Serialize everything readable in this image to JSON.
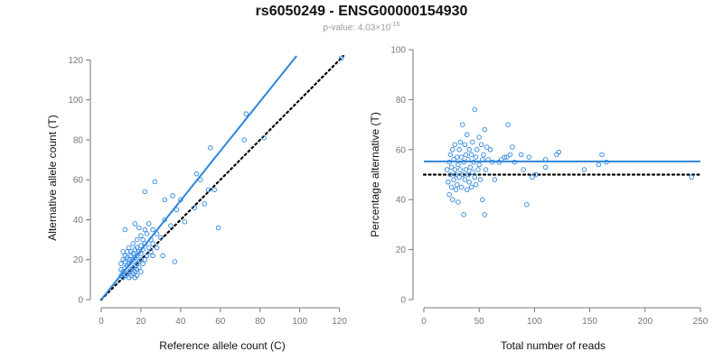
{
  "title": "rs6050249 - ENSG00000154930",
  "subtitle": {
    "prefix": "p-value: 4.03×10",
    "exponent": "-16"
  },
  "colors": {
    "points": "#2e86de",
    "fit": "#2e86de",
    "reference": "#000000",
    "axis": "#777777"
  },
  "chart_data": [
    {
      "type": "scatter",
      "xlabel": "Reference allele count (C)",
      "ylabel": "Alternative allele count (T)",
      "xlim": [
        0,
        122
      ],
      "ylim": [
        0,
        122
      ],
      "xticks": [
        0,
        20,
        40,
        60,
        80,
        100,
        120
      ],
      "yticks": [
        0,
        20,
        40,
        60,
        80,
        100,
        120
      ],
      "fit_line": {
        "style": "solid",
        "intercept": 0,
        "slope": 1.24
      },
      "reference_line": {
        "style": "dotted",
        "intercept": 0,
        "slope": 1.0
      },
      "points": [
        [
          10,
          12
        ],
        [
          10,
          15
        ],
        [
          10,
          18
        ],
        [
          11,
          11
        ],
        [
          11,
          14
        ],
        [
          11,
          20
        ],
        [
          11,
          24
        ],
        [
          12,
          12
        ],
        [
          12,
          16
        ],
        [
          12,
          19
        ],
        [
          12,
          22
        ],
        [
          12,
          35
        ],
        [
          13,
          13
        ],
        [
          13,
          17
        ],
        [
          13,
          21
        ],
        [
          13,
          24
        ],
        [
          14,
          11
        ],
        [
          14,
          14
        ],
        [
          14,
          18
        ],
        [
          14,
          20
        ],
        [
          14,
          26
        ],
        [
          15,
          12
        ],
        [
          15,
          15
        ],
        [
          15,
          19
        ],
        [
          15,
          22
        ],
        [
          15,
          24
        ],
        [
          16,
          13
        ],
        [
          16,
          16
        ],
        [
          16,
          20
        ],
        [
          16,
          23
        ],
        [
          16,
          28
        ],
        [
          17,
          11
        ],
        [
          17,
          14
        ],
        [
          17,
          17
        ],
        [
          17,
          21
        ],
        [
          17,
          25
        ],
        [
          17,
          38
        ],
        [
          18,
          12
        ],
        [
          18,
          15
        ],
        [
          18,
          18
        ],
        [
          18,
          22
        ],
        [
          18,
          26
        ],
        [
          18,
          30
        ],
        [
          19,
          16
        ],
        [
          19,
          19
        ],
        [
          19,
          24
        ],
        [
          19,
          36
        ],
        [
          20,
          14
        ],
        [
          20,
          20
        ],
        [
          20,
          23
        ],
        [
          20,
          27
        ],
        [
          20,
          32
        ],
        [
          21,
          18
        ],
        [
          21,
          25
        ],
        [
          21,
          30
        ],
        [
          22,
          20
        ],
        [
          22,
          28
        ],
        [
          22,
          35
        ],
        [
          22,
          54
        ],
        [
          23,
          22
        ],
        [
          23,
          33
        ],
        [
          24,
          26
        ],
        [
          24,
          38
        ],
        [
          25,
          24
        ],
        [
          25,
          30
        ],
        [
          26,
          22
        ],
        [
          26,
          28
        ],
        [
          26,
          35
        ],
        [
          27,
          59
        ],
        [
          28,
          26
        ],
        [
          28,
          33
        ],
        [
          30,
          31
        ],
        [
          31,
          22
        ],
        [
          32,
          40
        ],
        [
          32,
          50
        ],
        [
          35,
          37
        ],
        [
          36,
          52
        ],
        [
          37,
          19
        ],
        [
          38,
          45
        ],
        [
          40,
          50
        ],
        [
          42,
          39
        ],
        [
          47,
          46
        ],
        [
          48,
          63
        ],
        [
          50,
          60
        ],
        [
          52,
          48
        ],
        [
          54,
          55
        ],
        [
          55,
          76
        ],
        [
          57,
          55
        ],
        [
          59,
          36
        ],
        [
          72,
          80
        ],
        [
          73,
          93
        ],
        [
          82,
          81
        ],
        [
          121,
          121
        ]
      ]
    },
    {
      "type": "scatter",
      "xlabel": "Total number of reads",
      "ylabel": "Percentage alternative (T)",
      "xlim": [
        0,
        250
      ],
      "ylim": [
        0,
        100
      ],
      "xticks": [
        0,
        50,
        100,
        150,
        200,
        250
      ],
      "yticks": [
        0,
        20,
        40,
        60,
        80,
        100
      ],
      "fit_line": {
        "style": "solid",
        "value": 55.3
      },
      "reference_line": {
        "style": "dotted",
        "value": 50
      },
      "points": [
        [
          21,
          52
        ],
        [
          22,
          47
        ],
        [
          23,
          55
        ],
        [
          23,
          42
        ],
        [
          24,
          50
        ],
        [
          24,
          58
        ],
        [
          25,
          45
        ],
        [
          25,
          53
        ],
        [
          26,
          40
        ],
        [
          26,
          60
        ],
        [
          27,
          48
        ],
        [
          27,
          56
        ],
        [
          28,
          52
        ],
        [
          28,
          62
        ],
        [
          29,
          44
        ],
        [
          29,
          50
        ],
        [
          30,
          57
        ],
        [
          30,
          46
        ],
        [
          31,
          54
        ],
        [
          31,
          39
        ],
        [
          32,
          60
        ],
        [
          32,
          49
        ],
        [
          33,
          52
        ],
        [
          33,
          63
        ],
        [
          34,
          45
        ],
        [
          34,
          57
        ],
        [
          35,
          50
        ],
        [
          35,
          70
        ],
        [
          36,
          34
        ],
        [
          36,
          55
        ],
        [
          37,
          48
        ],
        [
          37,
          62
        ],
        [
          38,
          52
        ],
        [
          38,
          58
        ],
        [
          39,
          44
        ],
        [
          39,
          66
        ],
        [
          40,
          56
        ],
        [
          40,
          50
        ],
        [
          41,
          47
        ],
        [
          41,
          60
        ],
        [
          42,
          53
        ],
        [
          43,
          58
        ],
        [
          43,
          45
        ],
        [
          44,
          63
        ],
        [
          44,
          51
        ],
        [
          45,
          55
        ],
        [
          46,
          49
        ],
        [
          46,
          76
        ],
        [
          47,
          57
        ],
        [
          47,
          46
        ],
        [
          48,
          60
        ],
        [
          49,
          52
        ],
        [
          50,
          54
        ],
        [
          50,
          65
        ],
        [
          51,
          48
        ],
        [
          52,
          62
        ],
        [
          53,
          40
        ],
        [
          53,
          56
        ],
        [
          54,
          58
        ],
        [
          55,
          34
        ],
        [
          55,
          68
        ],
        [
          56,
          52
        ],
        [
          57,
          61
        ],
        [
          58,
          56
        ],
        [
          60,
          60
        ],
        [
          62,
          55
        ],
        [
          64,
          48
        ],
        [
          68,
          55
        ],
        [
          70,
          56
        ],
        [
          73,
          57
        ],
        [
          75,
          57
        ],
        [
          76,
          70
        ],
        [
          78,
          58
        ],
        [
          80,
          61
        ],
        [
          82,
          55
        ],
        [
          88,
          58
        ],
        [
          90,
          52
        ],
        [
          93,
          38
        ],
        [
          95,
          57
        ],
        [
          98,
          49
        ],
        [
          101,
          50
        ],
        [
          110,
          53
        ],
        [
          110,
          56
        ],
        [
          120,
          58
        ],
        [
          122,
          59
        ],
        [
          145,
          52
        ],
        [
          158,
          54
        ],
        [
          161,
          58
        ],
        [
          165,
          55
        ],
        [
          242,
          49
        ]
      ]
    }
  ]
}
